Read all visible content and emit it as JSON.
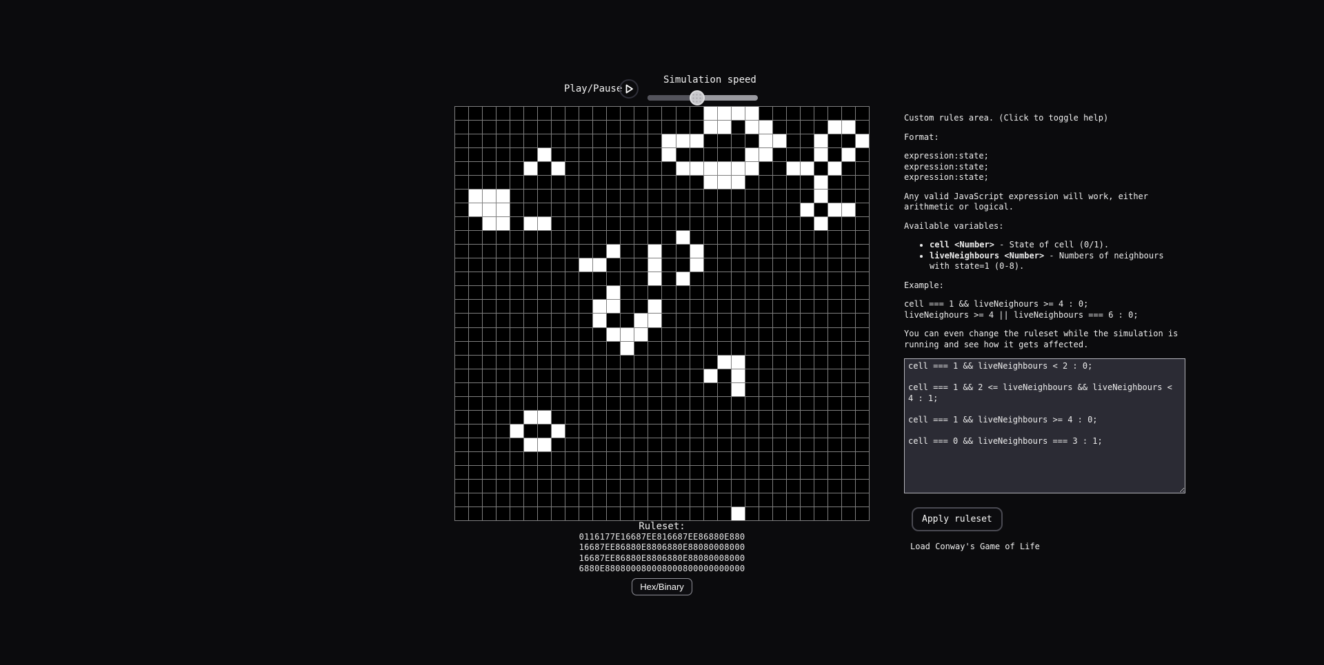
{
  "controls": {
    "play_pause_label": "Play/Pause",
    "play_icon": "play-triangle",
    "speed_label": "Simulation speed",
    "speed_percent": 45
  },
  "grid": {
    "rows": 30,
    "cols": 30,
    "line_color": "#7f7f7f",
    "dead_color": "#000000",
    "live_color": "#ffffff",
    "live_cells": [
      [
        0,
        18
      ],
      [
        0,
        19
      ],
      [
        0,
        20
      ],
      [
        0,
        21
      ],
      [
        1,
        18
      ],
      [
        1,
        19
      ],
      [
        1,
        21
      ],
      [
        1,
        22
      ],
      [
        1,
        27
      ],
      [
        1,
        28
      ],
      [
        2,
        15
      ],
      [
        2,
        16
      ],
      [
        2,
        17
      ],
      [
        2,
        22
      ],
      [
        2,
        23
      ],
      [
        2,
        26
      ],
      [
        2,
        29
      ],
      [
        3,
        6
      ],
      [
        3,
        15
      ],
      [
        3,
        21
      ],
      [
        3,
        22
      ],
      [
        3,
        26
      ],
      [
        3,
        28
      ],
      [
        4,
        5
      ],
      [
        4,
        7
      ],
      [
        4,
        16
      ],
      [
        4,
        17
      ],
      [
        4,
        18
      ],
      [
        4,
        19
      ],
      [
        4,
        20
      ],
      [
        4,
        21
      ],
      [
        4,
        24
      ],
      [
        4,
        25
      ],
      [
        4,
        27
      ],
      [
        5,
        18
      ],
      [
        5,
        19
      ],
      [
        5,
        20
      ],
      [
        5,
        26
      ],
      [
        6,
        1
      ],
      [
        6,
        2
      ],
      [
        6,
        3
      ],
      [
        6,
        26
      ],
      [
        7,
        1
      ],
      [
        7,
        2
      ],
      [
        7,
        3
      ],
      [
        7,
        25
      ],
      [
        7,
        27
      ],
      [
        7,
        28
      ],
      [
        8,
        2
      ],
      [
        8,
        3
      ],
      [
        8,
        5
      ],
      [
        8,
        6
      ],
      [
        8,
        26
      ],
      [
        9,
        16
      ],
      [
        10,
        11
      ],
      [
        10,
        14
      ],
      [
        10,
        17
      ],
      [
        11,
        9
      ],
      [
        11,
        10
      ],
      [
        11,
        14
      ],
      [
        11,
        17
      ],
      [
        12,
        14
      ],
      [
        12,
        16
      ],
      [
        13,
        11
      ],
      [
        14,
        10
      ],
      [
        14,
        11
      ],
      [
        14,
        14
      ],
      [
        15,
        10
      ],
      [
        15,
        13
      ],
      [
        15,
        14
      ],
      [
        16,
        11
      ],
      [
        16,
        12
      ],
      [
        16,
        13
      ],
      [
        17,
        12
      ],
      [
        18,
        19
      ],
      [
        18,
        20
      ],
      [
        19,
        18
      ],
      [
        19,
        20
      ],
      [
        20,
        20
      ],
      [
        22,
        5
      ],
      [
        22,
        6
      ],
      [
        23,
        4
      ],
      [
        23,
        7
      ],
      [
        24,
        5
      ],
      [
        24,
        6
      ],
      [
        29,
        20
      ]
    ]
  },
  "ruleset": {
    "label": "Ruleset:",
    "hex_lines": [
      "0116177E16687EE816687EE86880E880",
      "16687EE86880E8806880E88080008000",
      "16687EE86880E8806880E88080008000",
      "6880E880800080008000800000000000"
    ],
    "toggle_button_label": "Hex/Binary"
  },
  "help": {
    "title": "Custom rules area. (Click to toggle help)",
    "format_label": "Format:",
    "format_lines": [
      "expression:state;",
      "expression:state;",
      "expression:state;"
    ],
    "paragraph1": "Any valid JavaScript expression will work, either arithmetic or logical.",
    "variables_label": "Available variables:",
    "bullets": [
      {
        "term": "cell <Number>",
        "desc": " - State of cell (0/1)."
      },
      {
        "term": "liveNeighbours <Number>",
        "desc": " - Numbers of neighbours with state=1 (0-8)."
      }
    ],
    "example_label": "Example:",
    "example_lines": [
      "cell === 1 && liveNeighours >= 4 : 0;",
      "liveNeighours >= 4 || liveNeighbours === 6 : 0;"
    ],
    "paragraph2": "You can even change the ruleset while the simulation is running and see how it gets affected."
  },
  "editor": {
    "value": "cell === 1 && liveNeighbours < 2 : 0;\n\ncell === 1 && 2 <= liveNeighbours && liveNeighbours < 4 : 1;\n\ncell === 1 && liveNeighbours >= 4 : 0;\n\ncell === 0 && liveNeighbours === 3 : 1;"
  },
  "actions": {
    "apply_label": "Apply ruleset",
    "load_conway_label": "Load Conway's Game of Life"
  },
  "colors": {
    "background": "#0b0b0d",
    "text": "#f2f2f2",
    "editor_bg": "#2b2b34",
    "slider_fill": "#53535b",
    "slider_track": "#9a9aa0"
  }
}
